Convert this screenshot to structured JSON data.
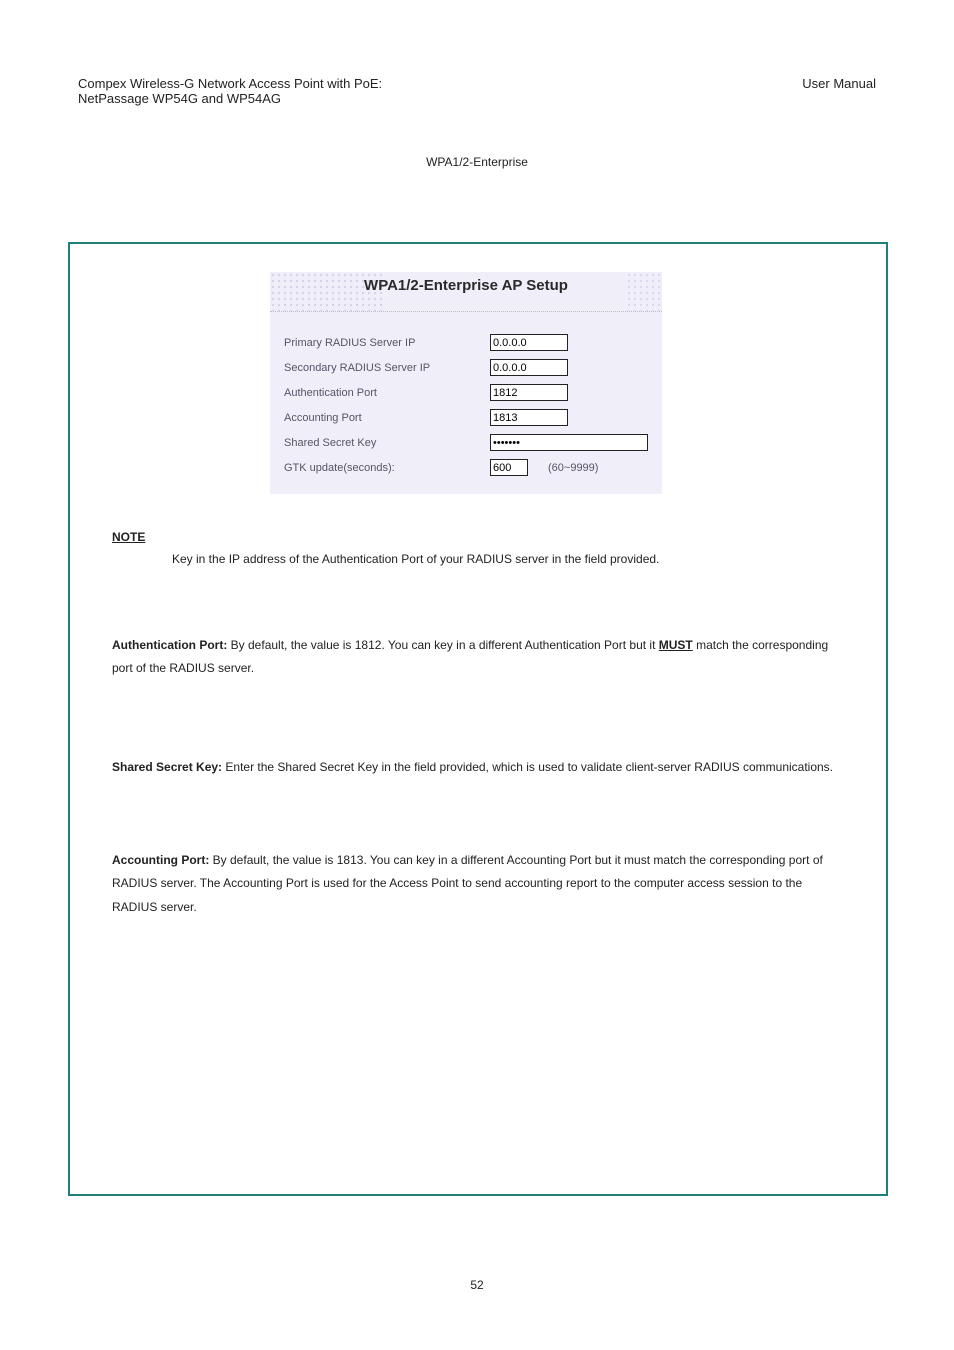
{
  "header": {
    "product_line1": "Compex Wireless-G Network Access Point with PoE:",
    "product_line2": "NetPassage WP54G and WP54AG",
    "doc_type": "User Manual",
    "figure_label": "WPA1/2-Enterprise"
  },
  "panel": {
    "title": "WPA1/2-Enterprise AP Setup",
    "background_color": "#f0eef8",
    "title_fontsize": 15,
    "label_color": "#555566",
    "label_fontsize": 11,
    "rows": [
      {
        "label": "Primary RADIUS Server IP",
        "value": "0.0.0.0",
        "width": "short",
        "type": "text"
      },
      {
        "label": "Secondary RADIUS Server IP",
        "value": "0.0.0.0",
        "width": "short",
        "type": "text"
      },
      {
        "label": "Authentication Port",
        "value": "1812",
        "width": "short",
        "type": "text"
      },
      {
        "label": "Accounting Port",
        "value": "1813",
        "width": "short",
        "type": "text"
      },
      {
        "label": "Shared Secret Key",
        "value": "•••••••",
        "width": "long",
        "type": "password"
      },
      {
        "label": "GTK update(seconds):",
        "value": "600",
        "width": "gtk",
        "type": "text",
        "hint": "(60~9999)"
      }
    ]
  },
  "note": {
    "label": "NOTE",
    "text_indent": "Key in the IP address of the Authentication Port of your RADIUS server in the field provided."
  },
  "para_auth_port": {
    "label": "Authentication Port: ",
    "text": "By default, the value is 1812. You can key in a different Authentication Port but it ",
    "must": "MUST",
    "text2": " match the corresponding port of the RADIUS server."
  },
  "para_shared_key": {
    "label": "Shared Secret Key: ",
    "text": "Enter the Shared Secret Key in the field provided, which is used to validate client-server RADIUS communications."
  },
  "para_accounting_port": {
    "label": "Accounting Port: ",
    "text": "By default, the value is 1813. You can key in a different Accounting Port but it must match the corresponding port of RADIUS server. The Accounting Port is used for the Access Point to send accounting report to the computer access session to the RADIUS server."
  },
  "page_number": "52",
  "frame_color": "#1e8079"
}
